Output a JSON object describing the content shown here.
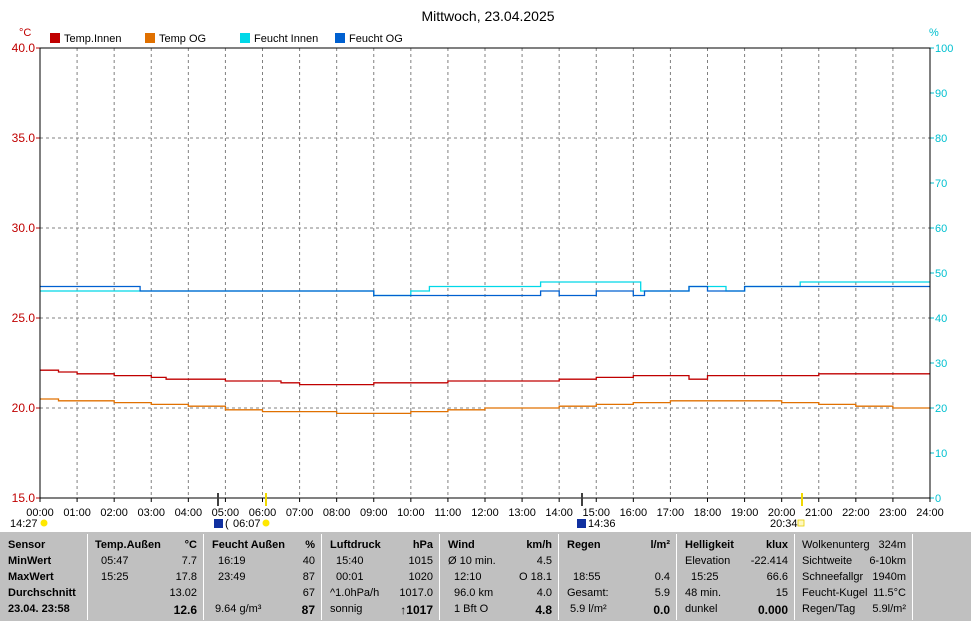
{
  "title": "Mittwoch, 23.04.2025",
  "chart_data": {
    "type": "line",
    "title": "Mittwoch, 23.04.2025",
    "left_unit": "°C",
    "right_unit": "%",
    "ylim_left": [
      15,
      40
    ],
    "ylim_right": [
      0,
      100
    ],
    "yticks_left": [
      "15.0",
      "20.0",
      "25.0",
      "30.0",
      "35.0",
      "40.0"
    ],
    "yticks_right": [
      "0",
      "10",
      "20",
      "30",
      "40",
      "50",
      "60",
      "70",
      "80",
      "90",
      "100"
    ],
    "xlim_hours": [
      0,
      24
    ],
    "xticks": [
      "00:00",
      "01:00",
      "02:00",
      "03:00",
      "04:00",
      "05:00",
      "06:00",
      "07:00",
      "08:00",
      "09:00",
      "10:00",
      "11:00",
      "12:00",
      "13:00",
      "14:00",
      "15:00",
      "16:00",
      "17:00",
      "18:00",
      "19:00",
      "20:00",
      "21:00",
      "22:00",
      "23:00",
      "24:00"
    ],
    "grid": true,
    "legend_position": "top",
    "series": [
      {
        "name": "Temp.Innen",
        "axis": "left",
        "color": "#c00000",
        "x": [
          0,
          0.5,
          1,
          2,
          3,
          3.4,
          5,
          6,
          6.5,
          7,
          8,
          9,
          10,
          11,
          12,
          13,
          14,
          15,
          16,
          17,
          17.5,
          18,
          19,
          20,
          21,
          22,
          23,
          24
        ],
        "y": [
          22.1,
          22.0,
          21.9,
          21.8,
          21.7,
          21.6,
          21.5,
          21.5,
          21.4,
          21.3,
          21.3,
          21.4,
          21.4,
          21.5,
          21.5,
          21.5,
          21.6,
          21.7,
          21.8,
          21.8,
          21.6,
          21.8,
          21.8,
          21.8,
          21.9,
          21.9,
          21.9,
          21.9
        ]
      },
      {
        "name": "Temp OG",
        "axis": "left",
        "color": "#e07000",
        "x": [
          0,
          0.5,
          1,
          2,
          3,
          4,
          5,
          6,
          7,
          8,
          9,
          10,
          11,
          12,
          13,
          14,
          15,
          16,
          17,
          18,
          19,
          20,
          21,
          22,
          23,
          24
        ],
        "y": [
          20.5,
          20.4,
          20.4,
          20.3,
          20.2,
          20.1,
          19.9,
          19.8,
          19.8,
          19.7,
          19.7,
          19.8,
          19.9,
          20.0,
          20.0,
          20.1,
          20.2,
          20.3,
          20.4,
          20.4,
          20.4,
          20.3,
          20.2,
          20.1,
          20.0,
          20.0
        ]
      },
      {
        "name": "Feucht Innen",
        "axis": "right",
        "color": "#00d8e8",
        "x": [
          0,
          8.9,
          9.0,
          9.9,
          10.0,
          10.5,
          12.5,
          13.5,
          15.5,
          16.2,
          17.5,
          18.5,
          19.0,
          20.0,
          20.5,
          24
        ],
        "y": [
          46,
          46,
          45,
          45,
          46,
          47,
          47,
          48,
          48,
          46,
          47,
          46,
          47,
          47,
          48,
          48
        ]
      },
      {
        "name": "Feucht OG",
        "axis": "right",
        "color": "#0060d0",
        "x": [
          0,
          2.5,
          2.7,
          3.0,
          8.8,
          9.0,
          10.0,
          13.0,
          13.5,
          14.0,
          14.6,
          15.0,
          15.8,
          16.0,
          16.3,
          17.0,
          17.5,
          18.0,
          18.5,
          19.0,
          19.5,
          20.0,
          24
        ],
        "y": [
          47,
          47,
          46,
          46,
          46,
          45,
          45,
          45,
          46,
          45,
          45,
          46,
          46,
          45,
          46,
          46,
          47,
          46,
          46,
          47,
          47,
          47,
          47
        ]
      }
    ],
    "annotations": {
      "left_time": "14:27",
      "sunrise": "06:07",
      "moon": "14:36",
      "sunset": "20:34"
    }
  },
  "table": {
    "sensor": {
      "header": "Sensor",
      "r1": "MinWert",
      "r2": "MaxWert",
      "r3": "Durchschnitt",
      "r4": "23.04. 23:58"
    },
    "temp": {
      "header": "Temp.Außen",
      "unit": "°C",
      "min_time": "05:47",
      "min_val": "7.7",
      "max_time": "15:25",
      "max_val": "17.8",
      "avg": "13.02",
      "current": "12.6"
    },
    "feucht": {
      "header": "Feucht Außen",
      "unit": "%",
      "min_time": "16:19",
      "min_val": "40",
      "max_time": "23:49",
      "max_val": "87",
      "avg": "67",
      "abs": "9.64 g/m³",
      "current": "87"
    },
    "luft": {
      "header": "Luftdruck",
      "unit": "hPa",
      "min_time": "15:40",
      "min_val": "1015",
      "max_time": "00:01",
      "max_val": "1020",
      "trend_label": "^1.0hPa/h",
      "trend_val": "1017.0",
      "weather": "sonnig",
      "current": "↑1017"
    },
    "wind": {
      "header": "Wind",
      "unit": "km/h",
      "r1_label": "Ø 10 min.",
      "r1_val": "4.5",
      "r2_label": "12:10",
      "r2_val": "O 18.1",
      "r3_label": "96.0 km",
      "r3_val": "4.0",
      "r4_label": "1 Bft O",
      "current": "4.8"
    },
    "regen": {
      "header": "Regen",
      "unit": "l/m²",
      "r2_label": "18:55",
      "r2_val": "0.4",
      "r3_label": "Gesamt:",
      "r3_val": "5.9",
      "r4_label": "5.9 l/m²",
      "current": "0.0"
    },
    "hell": {
      "header": "Helligkeit",
      "unit": "klux",
      "r1_label": "Elevation",
      "r1_val": "-22.414",
      "r2_label": "15:25",
      "r2_val": "66.6",
      "r3_label": "48 min.",
      "r3_val": "15",
      "r4_label": "dunkel",
      "current": "0.000"
    },
    "extra": {
      "r0_label": "Wolkenunterg",
      "r0_val": "324m",
      "r1_label": "Sichtweite",
      "r1_val": "6-10km",
      "r2_label": "Schneefallgr",
      "r2_val": "1940m",
      "r3_label": "Feucht-Kugel",
      "r3_val": "11.5°C",
      "r4_label": "Regen/Tag",
      "r4_val": "5.9l/m²"
    }
  }
}
